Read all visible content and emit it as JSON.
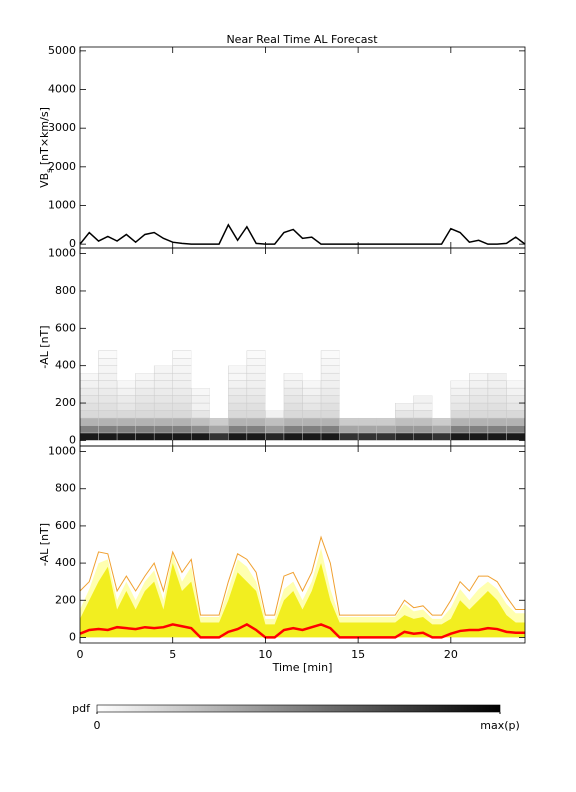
{
  "chart_data": [
    {
      "type": "line",
      "title": "Near Real Time AL Forecast",
      "ylabel_parts": [
        "VB",
        "s",
        " [nT×km/s]"
      ],
      "xlim": [
        0,
        24
      ],
      "xticks": [
        0,
        5,
        10,
        15,
        20
      ],
      "ylim": [
        -100,
        5100
      ],
      "yticks": [
        0,
        1000,
        2000,
        3000,
        4000,
        5000
      ],
      "x": [
        0,
        0.5,
        1,
        1.5,
        2,
        2.5,
        3,
        3.5,
        4,
        4.5,
        5,
        5.5,
        6,
        6.5,
        7,
        7.5,
        8,
        8.5,
        9,
        9.5,
        10,
        10.5,
        11,
        11.5,
        12,
        12.5,
        13,
        13.5,
        14,
        14.5,
        15,
        15.5,
        16,
        16.5,
        17,
        17.5,
        18,
        18.5,
        19,
        19.5,
        20,
        20.5,
        21,
        21.5,
        22,
        22.5,
        23,
        23.5,
        24
      ],
      "series": [
        {
          "color": "#000000",
          "values": [
            0,
            300,
            80,
            200,
            80,
            250,
            50,
            250,
            300,
            150,
            50,
            20,
            0,
            0,
            0,
            0,
            500,
            100,
            450,
            20,
            0,
            0,
            300,
            380,
            150,
            180,
            0,
            0,
            0,
            0,
            0,
            0,
            0,
            0,
            0,
            0,
            0,
            0,
            0,
            0,
            400,
            300,
            50,
            100,
            0,
            0,
            20,
            180,
            0
          ]
        }
      ]
    },
    {
      "type": "heatmap",
      "ylabel": "-AL [nT]",
      "xlim": [
        0,
        24
      ],
      "xticks": [
        0,
        5,
        10,
        15,
        20
      ],
      "ylim": [
        -30,
        1030
      ],
      "yticks": [
        0,
        200,
        400,
        600,
        800,
        1000
      ],
      "x_bins": [
        0,
        1,
        2,
        3,
        4,
        5,
        6,
        7,
        8,
        9,
        10,
        11,
        12,
        13,
        14,
        15,
        16,
        17,
        18,
        19,
        20,
        21,
        22,
        23,
        24
      ],
      "y_bins": [
        0,
        40,
        80,
        120,
        160,
        200,
        240,
        280,
        320,
        360,
        400,
        440,
        480
      ],
      "z": [
        [
          0.9,
          0.9,
          0.9,
          0.9,
          0.9,
          0.9,
          0.9,
          0.8,
          0.9,
          0.9,
          0.85,
          0.9,
          0.9,
          0.9,
          0.8,
          0.8,
          0.8,
          0.85,
          0.85,
          0.8,
          0.9,
          0.9,
          0.9,
          0.9
        ],
        [
          0.5,
          0.5,
          0.5,
          0.5,
          0.5,
          0.5,
          0.45,
          0.35,
          0.5,
          0.5,
          0.4,
          0.5,
          0.5,
          0.5,
          0.35,
          0.35,
          0.35,
          0.4,
          0.4,
          0.35,
          0.5,
          0.5,
          0.5,
          0.5
        ],
        [
          0.3,
          0.3,
          0.3,
          0.3,
          0.3,
          0.3,
          0.25,
          0.2,
          0.3,
          0.3,
          0.25,
          0.3,
          0.3,
          0.3,
          0.2,
          0.2,
          0.2,
          0.25,
          0.25,
          0.2,
          0.3,
          0.3,
          0.3,
          0.3
        ],
        [
          0.15,
          0.15,
          0.15,
          0.15,
          0.15,
          0.15,
          0.1,
          0,
          0.15,
          0.15,
          0.05,
          0.15,
          0.15,
          0.15,
          0,
          0,
          0,
          0.1,
          0.1,
          0,
          0.15,
          0.15,
          0.15,
          0.15
        ],
        [
          0.12,
          0.12,
          0.1,
          0.12,
          0.12,
          0.12,
          0.05,
          0,
          0.12,
          0.12,
          0,
          0.12,
          0.1,
          0.12,
          0,
          0,
          0,
          0.05,
          0.05,
          0,
          0.1,
          0.12,
          0.12,
          0.1
        ],
        [
          0.1,
          0.1,
          0.08,
          0.1,
          0.1,
          0.1,
          0.05,
          0,
          0.1,
          0.1,
          0,
          0.1,
          0.08,
          0.1,
          0,
          0,
          0,
          0,
          0.05,
          0,
          0.08,
          0.1,
          0.1,
          0.08
        ],
        [
          0.08,
          0.08,
          0.05,
          0.08,
          0.08,
          0.08,
          0.03,
          0,
          0.08,
          0.08,
          0,
          0.08,
          0.05,
          0.08,
          0,
          0,
          0,
          0,
          0,
          0,
          0.05,
          0.08,
          0.08,
          0.05
        ],
        [
          0.05,
          0.06,
          0.03,
          0.05,
          0.06,
          0.06,
          0,
          0,
          0.05,
          0.06,
          0,
          0.05,
          0.03,
          0.06,
          0,
          0,
          0,
          0,
          0,
          0,
          0.03,
          0.05,
          0.06,
          0.03
        ],
        [
          0.03,
          0.05,
          0,
          0.03,
          0.05,
          0.05,
          0,
          0,
          0.03,
          0.05,
          0,
          0.03,
          0,
          0.05,
          0,
          0,
          0,
          0,
          0,
          0,
          0,
          0.03,
          0.05,
          0
        ],
        [
          0,
          0.04,
          0,
          0,
          0.04,
          0.04,
          0,
          0,
          0.03,
          0.04,
          0,
          0,
          0,
          0.04,
          0,
          0,
          0,
          0,
          0,
          0,
          0,
          0,
          0,
          0
        ],
        [
          0,
          0.03,
          0,
          0,
          0,
          0.03,
          0,
          0,
          0,
          0.03,
          0,
          0,
          0,
          0.03,
          0,
          0,
          0,
          0,
          0,
          0,
          0,
          0,
          0,
          0
        ],
        [
          0,
          0.02,
          0,
          0,
          0,
          0.02,
          0,
          0,
          0,
          0.02,
          0,
          0,
          0,
          0.02,
          0,
          0,
          0,
          0,
          0,
          0,
          0,
          0,
          0,
          0
        ]
      ],
      "colorbar": {
        "label": "pdf",
        "zlim": [
          0,
          1
        ],
        "ticks": [
          0,
          {
            "value": 1,
            "label": "max(p)"
          }
        ]
      }
    },
    {
      "type": "area",
      "ylabel": "-AL [nT]",
      "xlabel": "Time [min]",
      "xlim": [
        0,
        24
      ],
      "xticks": [
        0,
        5,
        10,
        15,
        20
      ],
      "ylim": [
        -30,
        1030
      ],
      "yticks": [
        0,
        200,
        400,
        600,
        800,
        1000
      ],
      "x": [
        0,
        0.5,
        1,
        1.5,
        2,
        2.5,
        3,
        3.5,
        4,
        4.5,
        5,
        5.5,
        6,
        6.5,
        7,
        7.5,
        8,
        8.5,
        9,
        9.5,
        10,
        10.5,
        11,
        11.5,
        12,
        12.5,
        13,
        13.5,
        14,
        14.5,
        15,
        15.5,
        16,
        16.5,
        17,
        17.5,
        18,
        18.5,
        19,
        19.5,
        20,
        20.5,
        21,
        21.5,
        22,
        22.5,
        23,
        23.5,
        24
      ],
      "series": [
        {
          "color": "#ffffb0",
          "fill": true,
          "values": [
            150,
            260,
            400,
            420,
            200,
            300,
            200,
            300,
            360,
            200,
            450,
            300,
            380,
            110,
            110,
            110,
            260,
            420,
            380,
            300,
            100,
            100,
            260,
            300,
            200,
            300,
            480,
            260,
            110,
            110,
            110,
            110,
            110,
            110,
            110,
            180,
            140,
            150,
            100,
            100,
            160,
            260,
            200,
            260,
            300,
            260,
            180,
            130,
            130
          ]
        },
        {
          "color": "#f0a030",
          "fill": false,
          "values": [
            250,
            300,
            460,
            450,
            250,
            330,
            250,
            330,
            400,
            250,
            460,
            350,
            420,
            120,
            120,
            120,
            300,
            450,
            420,
            350,
            120,
            120,
            330,
            350,
            250,
            350,
            540,
            400,
            120,
            120,
            120,
            120,
            120,
            120,
            120,
            200,
            160,
            170,
            120,
            120,
            200,
            300,
            250,
            330,
            330,
            300,
            220,
            150,
            150
          ]
        },
        {
          "color": "#f2ee20",
          "fill": true,
          "values": [
            100,
            200,
            300,
            380,
            150,
            250,
            150,
            250,
            300,
            150,
            400,
            250,
            300,
            80,
            80,
            80,
            200,
            350,
            300,
            250,
            70,
            70,
            200,
            250,
            150,
            250,
            400,
            200,
            80,
            80,
            80,
            80,
            80,
            80,
            80,
            120,
            100,
            110,
            70,
            70,
            100,
            200,
            150,
            200,
            250,
            200,
            120,
            80,
            80
          ]
        },
        {
          "color": "#ff0000",
          "fill": false,
          "width": 2.5,
          "values": [
            20,
            40,
            45,
            40,
            55,
            50,
            45,
            55,
            50,
            55,
            70,
            60,
            50,
            0,
            0,
            0,
            30,
            45,
            70,
            40,
            0,
            0,
            40,
            50,
            40,
            55,
            70,
            50,
            0,
            0,
            0,
            0,
            0,
            0,
            0,
            30,
            20,
            25,
            0,
            0,
            20,
            35,
            40,
            40,
            50,
            45,
            30,
            25,
            25
          ]
        }
      ]
    }
  ]
}
